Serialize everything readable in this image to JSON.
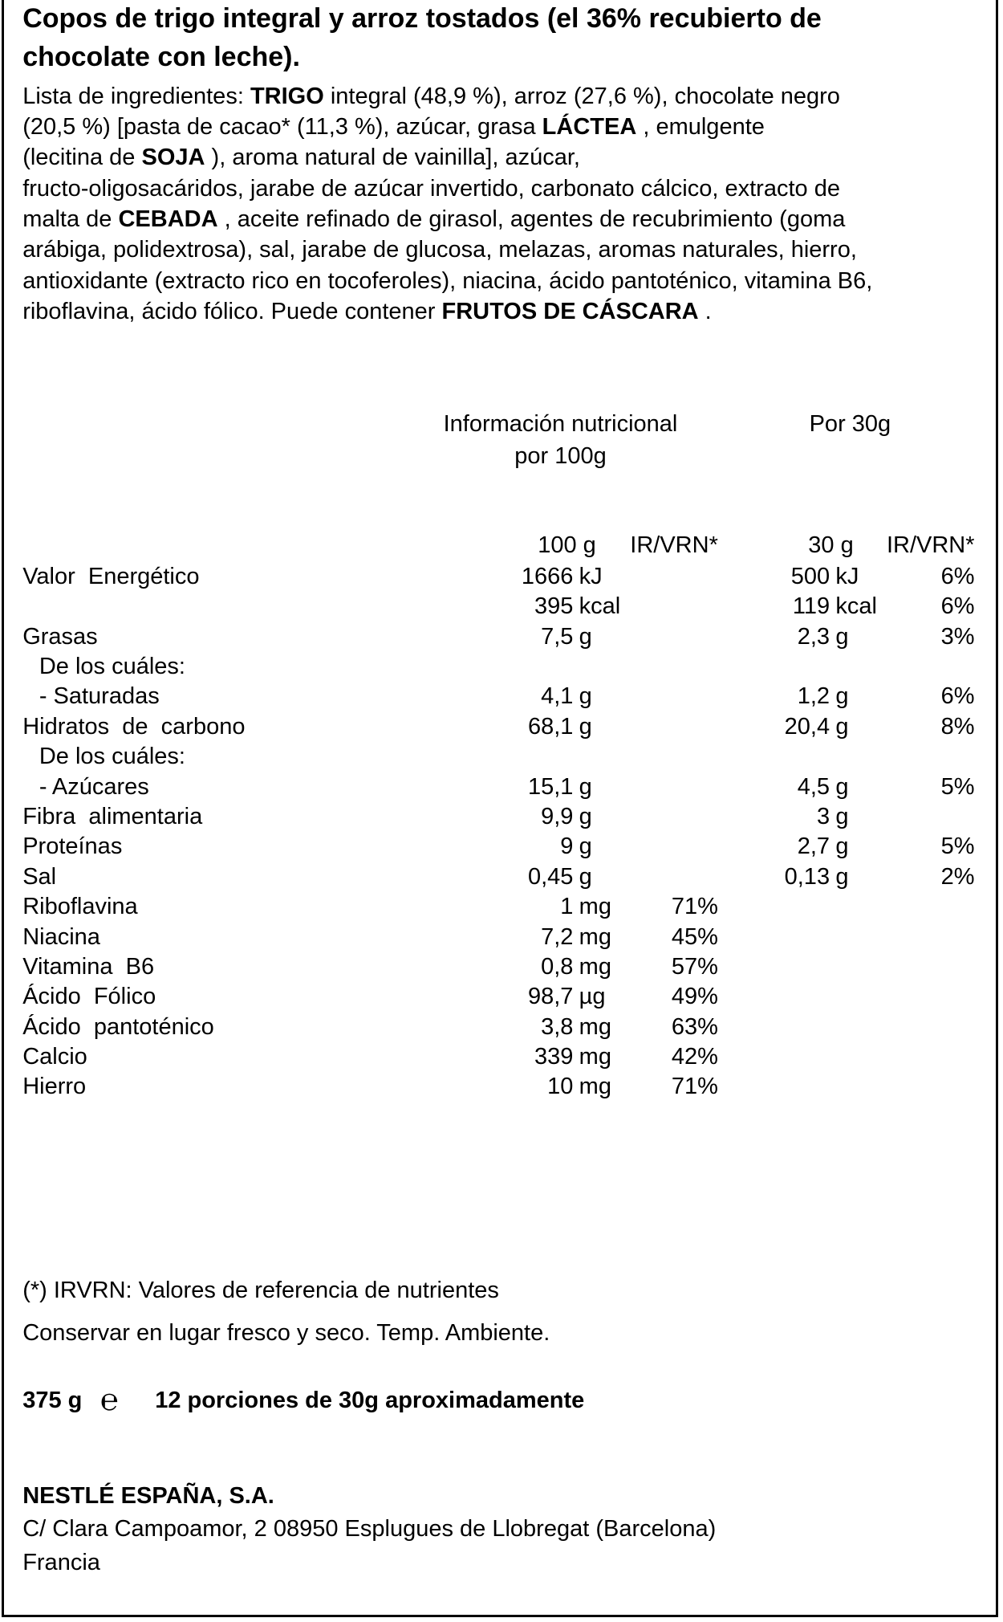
{
  "title": [
    "Copos de trigo integral y arroz tostados (el 36% recubierto de",
    "chocolate con leche)."
  ],
  "ingredients": [
    [
      {
        "text": "Lista de ingredientes: ",
        "bold": false
      },
      {
        "text": "TRIGO",
        "bold": true
      },
      {
        "text": " integral (48,9 %), arroz (27,6 %), chocolate negro",
        "bold": false
      }
    ],
    [
      {
        "text": "(20,5 %) [pasta de cacao* (11,3 %), azúcar, grasa ",
        "bold": false
      },
      {
        "text": "LÁCTEA",
        "bold": true
      },
      {
        "text": " , emulgente",
        "bold": false
      }
    ],
    [
      {
        "text": "(lecitina de ",
        "bold": false
      },
      {
        "text": "SOJA",
        "bold": true
      },
      {
        "text": " ), aroma natural de vainilla], azúcar,",
        "bold": false
      }
    ],
    [
      {
        "text": "fructo-oligosacáridos, jarabe de azúcar invertido, carbonato cálcico, extracto de",
        "bold": false
      }
    ],
    [
      {
        "text": "malta de ",
        "bold": false
      },
      {
        "text": "CEBADA",
        "bold": true
      },
      {
        "text": " , aceite refinado de girasol, agentes de recubrimiento (goma",
        "bold": false
      }
    ],
    [
      {
        "text": "arábiga, polidextrosa), sal, jarabe de glucosa, melazas, aromas naturales, hierro,",
        "bold": false
      }
    ],
    [
      {
        "text": "antioxidante (extracto rico en tocoferoles), niacina, ácido pantoténico, vitamina B6,",
        "bold": false
      }
    ],
    [
      {
        "text": "riboflavina, ácido fólico. Puede contener ",
        "bold": false
      },
      {
        "text": "FRUTOS DE CÁSCARA",
        "bold": true
      },
      {
        "text": " .",
        "bold": false
      }
    ]
  ],
  "table": {
    "heading_100": [
      "Información nutricional",
      "por 100g"
    ],
    "heading_30": "Por 30g",
    "columns": [
      "100 g",
      "IR/VRN*",
      "30 g",
      "IR/VRN*"
    ],
    "rows": [
      [
        "Valor  Energético",
        "1666",
        "kJ",
        null,
        "500",
        "kJ",
        "6%"
      ],
      [
        null,
        "395",
        "kcal",
        null,
        "119",
        "kcal",
        "6%"
      ],
      [
        "Grasas",
        "7,5",
        "g",
        null,
        "2,3",
        "g",
        "3%"
      ],
      [
        "De los cuáles:",
        null,
        null,
        null,
        null,
        null,
        null
      ],
      [
        "- Saturadas",
        "4,1",
        "g",
        null,
        "1,2",
        "g",
        "6%"
      ],
      [
        "Hidratos  de  carbono",
        "68,1",
        "g",
        null,
        "20,4",
        "g",
        "8%"
      ],
      [
        "De los cuáles:",
        null,
        null,
        null,
        null,
        null,
        null
      ],
      [
        "- Azúcares",
        "15,1",
        "g",
        null,
        "4,5",
        "g",
        "5%"
      ],
      [
        "Fibra  alimentaria",
        "9,9",
        "g",
        null,
        "3",
        "g",
        null
      ],
      [
        "Proteínas",
        "9",
        "g",
        null,
        "2,7",
        "g",
        "5%"
      ],
      [
        "Sal",
        "0,45",
        "g",
        null,
        "0,13",
        "g",
        "2%"
      ],
      [
        "Riboflavina",
        "1",
        "mg",
        "71%",
        null,
        null,
        null
      ],
      [
        "Niacina",
        "7,2",
        "mg",
        "45%",
        null,
        null,
        null
      ],
      [
        "Vitamina  B6",
        "0,8",
        "mg",
        "57%",
        null,
        null,
        null
      ],
      [
        "Ácido  Fólico",
        "98,7",
        "µg",
        "49%",
        null,
        null,
        null
      ],
      [
        "Ácido  pantoténico",
        "3,8",
        "mg",
        "63%",
        null,
        null,
        null
      ],
      [
        "Calcio",
        "339",
        "mg",
        "42%",
        null,
        null,
        null
      ],
      [
        "Hierro",
        "10",
        "mg",
        "71%",
        null,
        null,
        null
      ]
    ]
  },
  "footnote": "(*) IRVRN: Valores de referencia de nutrientes",
  "storage": "Conservar en lugar fresco y seco. Temp. Ambiente.",
  "quantity": {
    "weight": "375 g",
    "e_mark": "℮",
    "portions": "12 porciones de 30g aproximadamente"
  },
  "company": {
    "name": "NESTLÉ ESPAÑA, S.A.",
    "address": "C/ Clara Campoamor, 2 08950 Esplugues de Llobregat (Barcelona)",
    "country": "Francia"
  }
}
